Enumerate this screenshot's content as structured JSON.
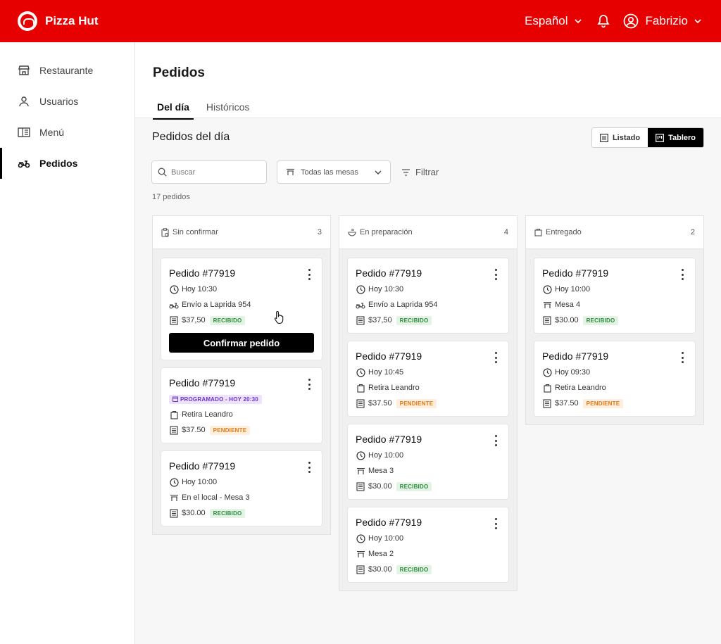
{
  "brand": {
    "name": "Pizza Hut"
  },
  "topbar": {
    "language": "Español",
    "user_name": "Fabrizio"
  },
  "sidebar": {
    "items": [
      {
        "label": "Restaurante"
      },
      {
        "label": "Usuarios"
      },
      {
        "label": "Menú"
      },
      {
        "label": "Pedidos"
      }
    ]
  },
  "page": {
    "title": "Pedidos",
    "tabs": [
      {
        "label": "Del día"
      },
      {
        "label": "Históricos"
      }
    ],
    "section_title": "Pedidos del día",
    "view_toggle": {
      "list_label": "Listado",
      "board_label": "Tablero"
    },
    "search": {
      "placeholder": "Buscar"
    },
    "table_select": {
      "value": "Todas las mesas"
    },
    "filter_label": "Filtrar",
    "order_count": "17 pedidos"
  },
  "columns": [
    {
      "title": "Sin confirmar",
      "count": "3",
      "cards": [
        {
          "title": "Pedido #77919",
          "time": "Hoy 10:30",
          "delivery": "Envío a Laprida 954",
          "amount": "$37,50",
          "status": "RECIBIDO",
          "confirm_label": "Confirmar pedido"
        },
        {
          "title": "Pedido #77919",
          "scheduled": "PROGRAMADO - HOY 20:30",
          "pickup": "Retira Leandro",
          "amount": "$37.50",
          "status": "PENDIENTE"
        },
        {
          "title": "Pedido #77919",
          "time": "Hoy 10:00",
          "table": "En el local - Mesa 3",
          "amount": "$30.00",
          "status": "RECIBIDO"
        }
      ]
    },
    {
      "title": "En preparación",
      "count": "4",
      "cards": [
        {
          "title": "Pedido #77919",
          "time": "Hoy 10:30",
          "delivery": "Envío a Laprida 954",
          "amount": "$37,50",
          "status": "RECIBIDO"
        },
        {
          "title": "Pedido #77919",
          "time": "Hoy 10:45",
          "pickup": "Retira Leandro",
          "amount": "$37.50",
          "status": "PENDIENTE"
        },
        {
          "title": "Pedido #77919",
          "time": "Hoy 10:00",
          "table": "Mesa 3",
          "amount": "$30.00",
          "status": "RECIBIDO"
        },
        {
          "title": "Pedido #77919",
          "time": "Hoy 10:00",
          "table": "Mesa 2",
          "amount": "$30.00",
          "status": "RECIBIDO"
        }
      ]
    },
    {
      "title": "Entregado",
      "count": "2",
      "cards": [
        {
          "title": "Pedido #77919",
          "time": "Hoy 10:00",
          "table": "Mesa 4",
          "amount": "$30.00",
          "status": "RECIBIDO"
        },
        {
          "title": "Pedido #77919",
          "time": "Hoy 09:30",
          "pickup": "Retira Leandro",
          "amount": "$37.50",
          "status": "PENDIENTE"
        }
      ]
    }
  ],
  "colors": {
    "brand_red": "#e60000",
    "received_green": "#2e8b3c",
    "pending_orange": "#e07b16",
    "scheduled_purple": "#6b35c9"
  },
  "icons": [
    "logo-icon",
    "chevron-down-icon",
    "bell-icon",
    "user-circle-icon",
    "store-icon",
    "user-icon",
    "menu-book-icon",
    "scooter-icon",
    "search-icon",
    "table-icon",
    "filter-icon",
    "list-icon",
    "board-icon",
    "clock-icon",
    "bag-icon",
    "receipt-icon",
    "calendar-icon",
    "kebab-icon"
  ]
}
